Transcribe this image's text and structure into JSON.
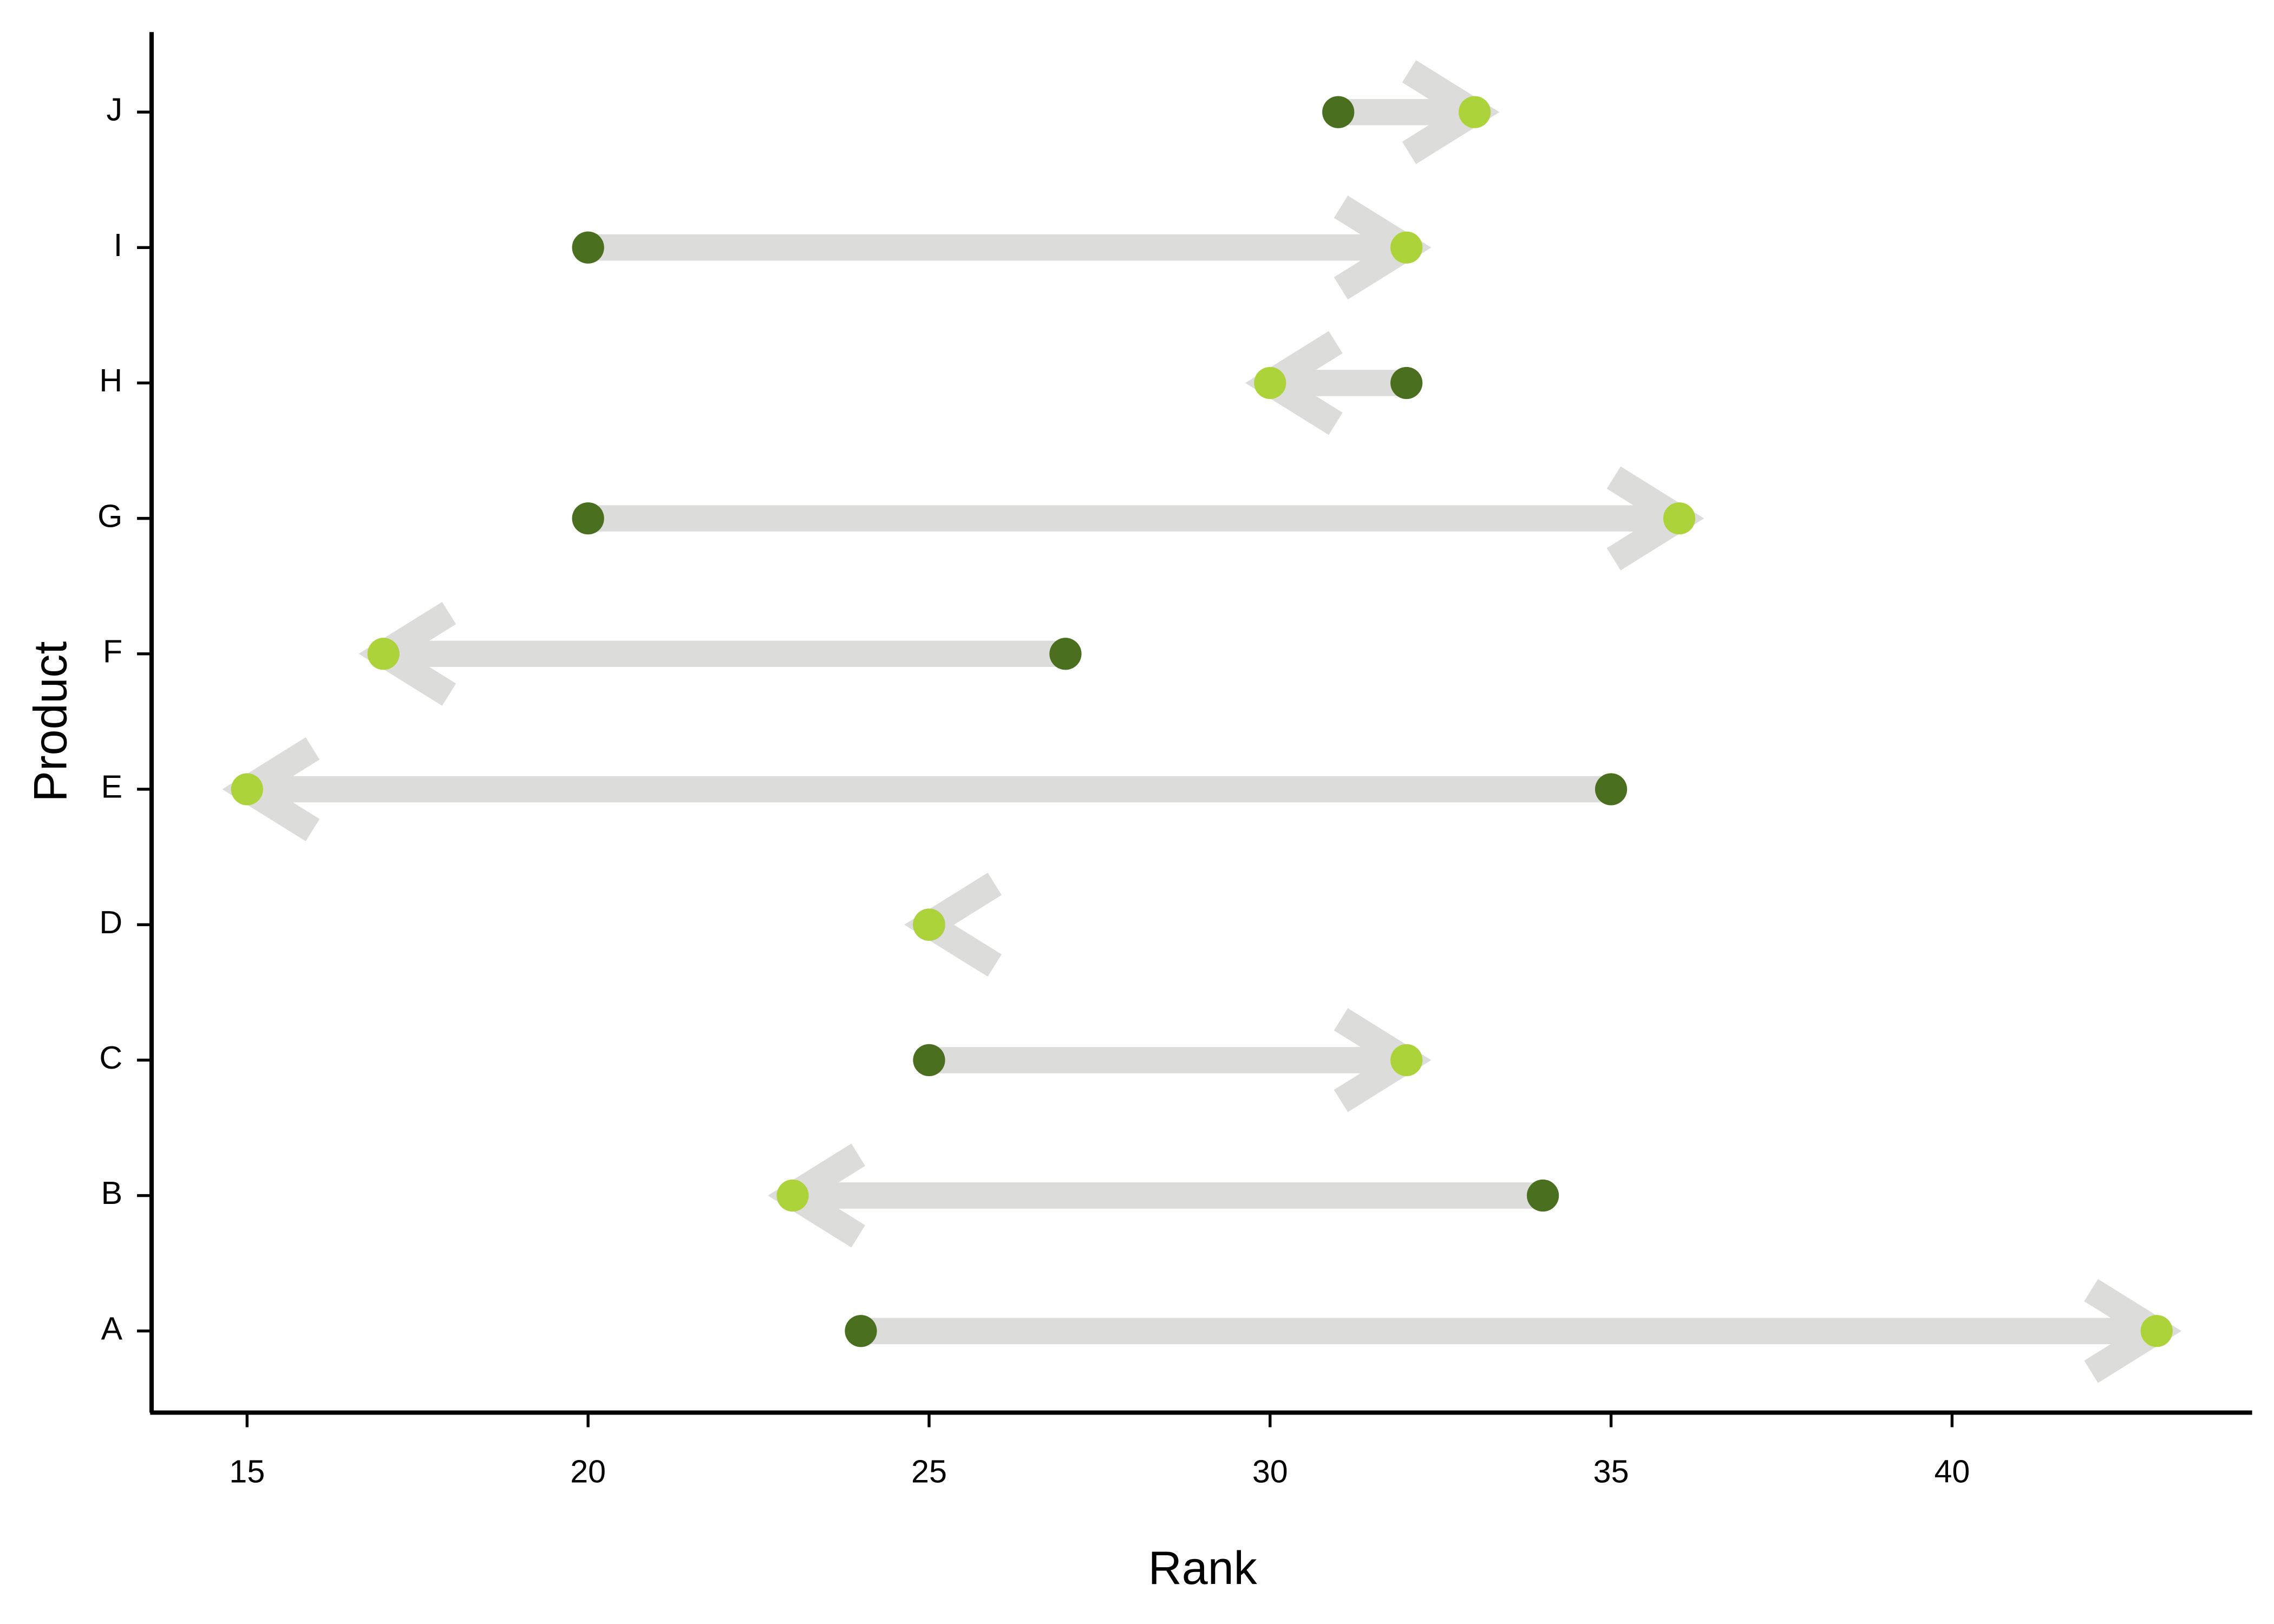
{
  "chart_data": {
    "type": "arrow",
    "x_label": "Rank",
    "y_label": "Product",
    "categories": [
      "A",
      "B",
      "C",
      "D",
      "E",
      "F",
      "G",
      "H",
      "I",
      "J"
    ],
    "start": {
      "color": "#4a6f1e",
      "values": [
        24,
        34,
        25,
        25,
        35,
        27,
        20,
        32,
        20,
        31
      ]
    },
    "end": {
      "color": "#acd43a",
      "values": [
        43,
        23,
        32,
        25,
        15,
        17,
        36,
        30,
        32,
        33
      ]
    },
    "arrow_color": "#dcdcdb",
    "xlim": [
      13.6,
      44.4
    ],
    "xticks": [
      15,
      20,
      25,
      30,
      35,
      40
    ],
    "grid": false
  }
}
